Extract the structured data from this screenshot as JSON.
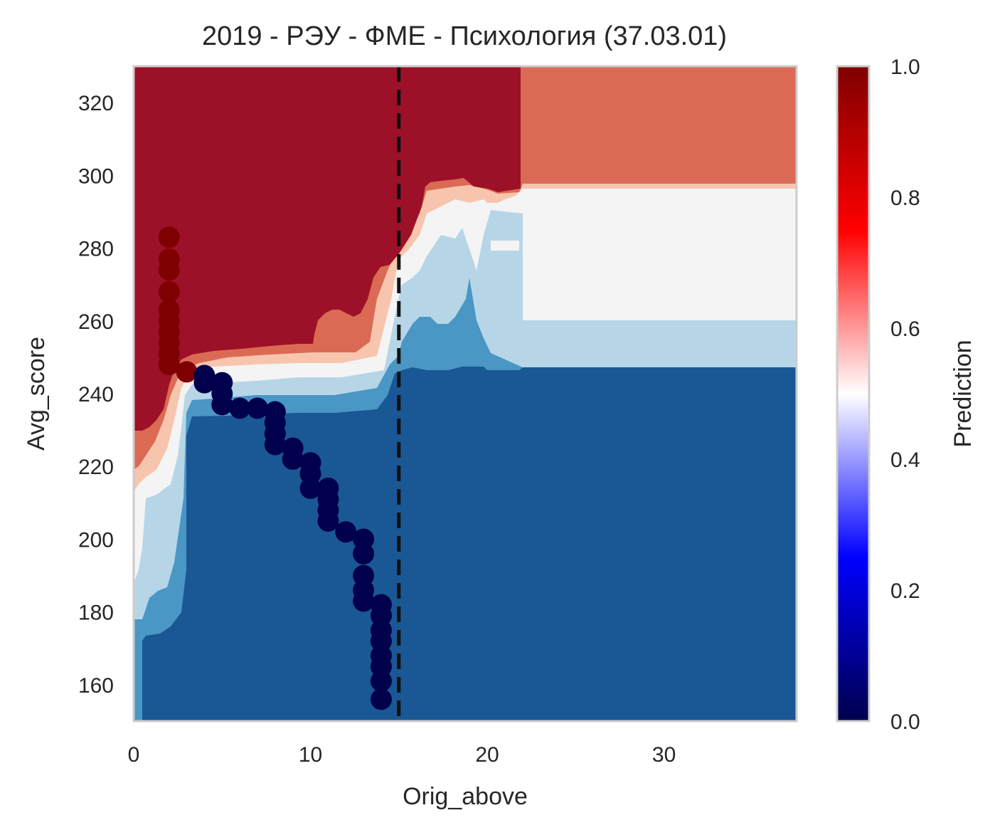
{
  "chart_data": {
    "type": "contour",
    "title": "2019 - РЭУ - ФМЕ - Психология (37.03.01)",
    "xlabel": "Orig_above",
    "ylabel": "Avg_score",
    "xlim": [
      0,
      37.5
    ],
    "ylim": [
      150,
      330
    ],
    "xticks": [
      0,
      10,
      20,
      30
    ],
    "yticks": [
      160,
      180,
      200,
      220,
      240,
      260,
      280,
      300,
      320
    ],
    "grid": false,
    "vline": {
      "x": 15,
      "style": "dashed",
      "color": "#111111"
    },
    "colorbar": {
      "label": "Prediction",
      "min": 0.0,
      "max": 1.0,
      "ticks": [
        "0.0",
        "0.2",
        "0.4",
        "0.6",
        "0.8",
        "1.0"
      ],
      "colormap": "seismic",
      "colors": [
        "#00004c",
        "#0000ff",
        "#ffffff",
        "#ff0000",
        "#7f0000"
      ]
    },
    "contour_levels": [
      {
        "range": [
          0.0,
          0.125
        ],
        "color": "#1a5795"
      },
      {
        "range": [
          0.125,
          0.25
        ],
        "color": "#4a96c4"
      },
      {
        "range": [
          0.25,
          0.375
        ],
        "color": "#b6d6e8"
      },
      {
        "range": [
          0.375,
          0.5
        ],
        "color": "#f4f4f4"
      },
      {
        "range": [
          0.5,
          0.625
        ],
        "color": "#f7c5ad"
      },
      {
        "range": [
          0.625,
          0.75
        ],
        "color": "#db6a55"
      },
      {
        "range": [
          0.75,
          1.0
        ],
        "color": "#9c1128"
      }
    ],
    "series": [
      {
        "label_value": 1,
        "color": "#7f0000",
        "points": [
          [
            2,
            283
          ],
          [
            2,
            277
          ],
          [
            2,
            274
          ],
          [
            2,
            268
          ],
          [
            2,
            263
          ],
          [
            2,
            260
          ],
          [
            2,
            257
          ],
          [
            2,
            254
          ],
          [
            2,
            251
          ],
          [
            2,
            248
          ],
          [
            3,
            246
          ]
        ]
      },
      {
        "label_value": 0,
        "color": "#00004c",
        "points": [
          [
            4,
            245
          ],
          [
            4,
            243
          ],
          [
            5,
            243
          ],
          [
            5,
            240
          ],
          [
            5,
            237
          ],
          [
            6,
            236
          ],
          [
            7,
            236
          ],
          [
            8,
            235
          ],
          [
            8,
            232
          ],
          [
            8,
            229
          ],
          [
            8,
            226
          ],
          [
            9,
            225
          ],
          [
            9,
            222
          ],
          [
            10,
            221
          ],
          [
            10,
            218
          ],
          [
            10,
            214
          ],
          [
            11,
            214
          ],
          [
            11,
            211
          ],
          [
            11,
            208
          ],
          [
            11,
            205
          ],
          [
            12,
            202
          ],
          [
            13,
            200
          ],
          [
            13,
            196
          ],
          [
            13,
            190
          ],
          [
            13,
            186
          ],
          [
            13,
            183
          ],
          [
            14,
            182
          ],
          [
            14,
            179
          ],
          [
            14,
            175
          ],
          [
            14,
            172
          ],
          [
            14,
            168
          ],
          [
            14,
            165
          ],
          [
            14,
            161
          ],
          [
            14,
            156
          ]
        ]
      }
    ]
  }
}
